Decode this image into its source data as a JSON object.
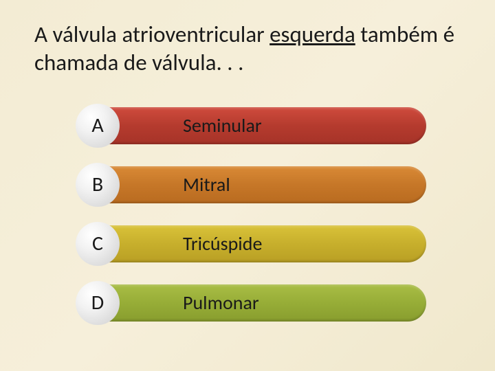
{
  "background": {
    "gradient": "linear-gradient(135deg, #f3ecd4 0%, #f6efda 50%, #f0e8cc 100%)"
  },
  "question": {
    "part1": "A válvula atrioventricular ",
    "underlined": "esquerda",
    "part2": " também é chamada de válvula. . .",
    "fontsize": 33,
    "color": "#1a1a1a"
  },
  "options": [
    {
      "letter": "A",
      "label": "Seminular",
      "bar_color": "linear-gradient(180deg, #cf4b3d 0%, #b53b2e 50%, #a63328 100%)"
    },
    {
      "letter": "B",
      "label": "Mitral",
      "bar_color": "linear-gradient(180deg, #d98a36 0%, #c67728 50%, #b96b20 100%)"
    },
    {
      "letter": "C",
      "label": "Tricúspide",
      "bar_color": "linear-gradient(180deg, #d9c239 0%, #c7af2c 50%, #b99f24 100%)"
    },
    {
      "letter": "D",
      "label": "Pulmonar",
      "bar_color": "linear-gradient(180deg, #a9bd45 0%, #97ad37 50%, #889d2e 100%)"
    }
  ],
  "circle": {
    "bg": "radial-gradient(ellipse at 35% 30%, #ffffff 0%, #f2f2f2 35%, #dcdcdc 75%, #c8c8c8 100%)",
    "fontsize": 30,
    "color": "#1a1a1a"
  },
  "label_style": {
    "fontsize": 28,
    "color": "#1a1a1a"
  }
}
